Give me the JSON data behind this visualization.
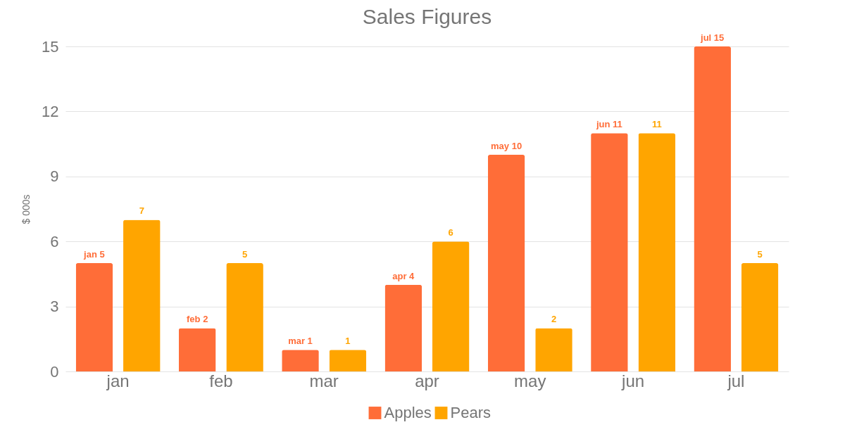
{
  "chart_data": {
    "type": "bar",
    "title": "Sales Figures",
    "ylabel": "$ 000s",
    "categories": [
      "jan",
      "feb",
      "mar",
      "apr",
      "may",
      "jun",
      "jul"
    ],
    "series": [
      {
        "name": "Apples",
        "color": "#ff6d38",
        "values": [
          5,
          2,
          1,
          4,
          10,
          11,
          15
        ],
        "value_labels": [
          "jan 5",
          "feb 2",
          "mar 1",
          "apr 4",
          "may 10",
          "jun 11",
          "jul 15"
        ]
      },
      {
        "name": "Pears",
        "color": "#ffa500",
        "values": [
          7,
          5,
          1,
          6,
          2,
          11,
          5
        ],
        "value_labels": [
          "7",
          "5",
          "1",
          "6",
          "2",
          "11",
          "5"
        ]
      }
    ],
    "ylim": [
      0,
      15
    ],
    "yticks": [
      0,
      3,
      6,
      9,
      12,
      15
    ],
    "grid": "y",
    "legend": "bottom"
  }
}
